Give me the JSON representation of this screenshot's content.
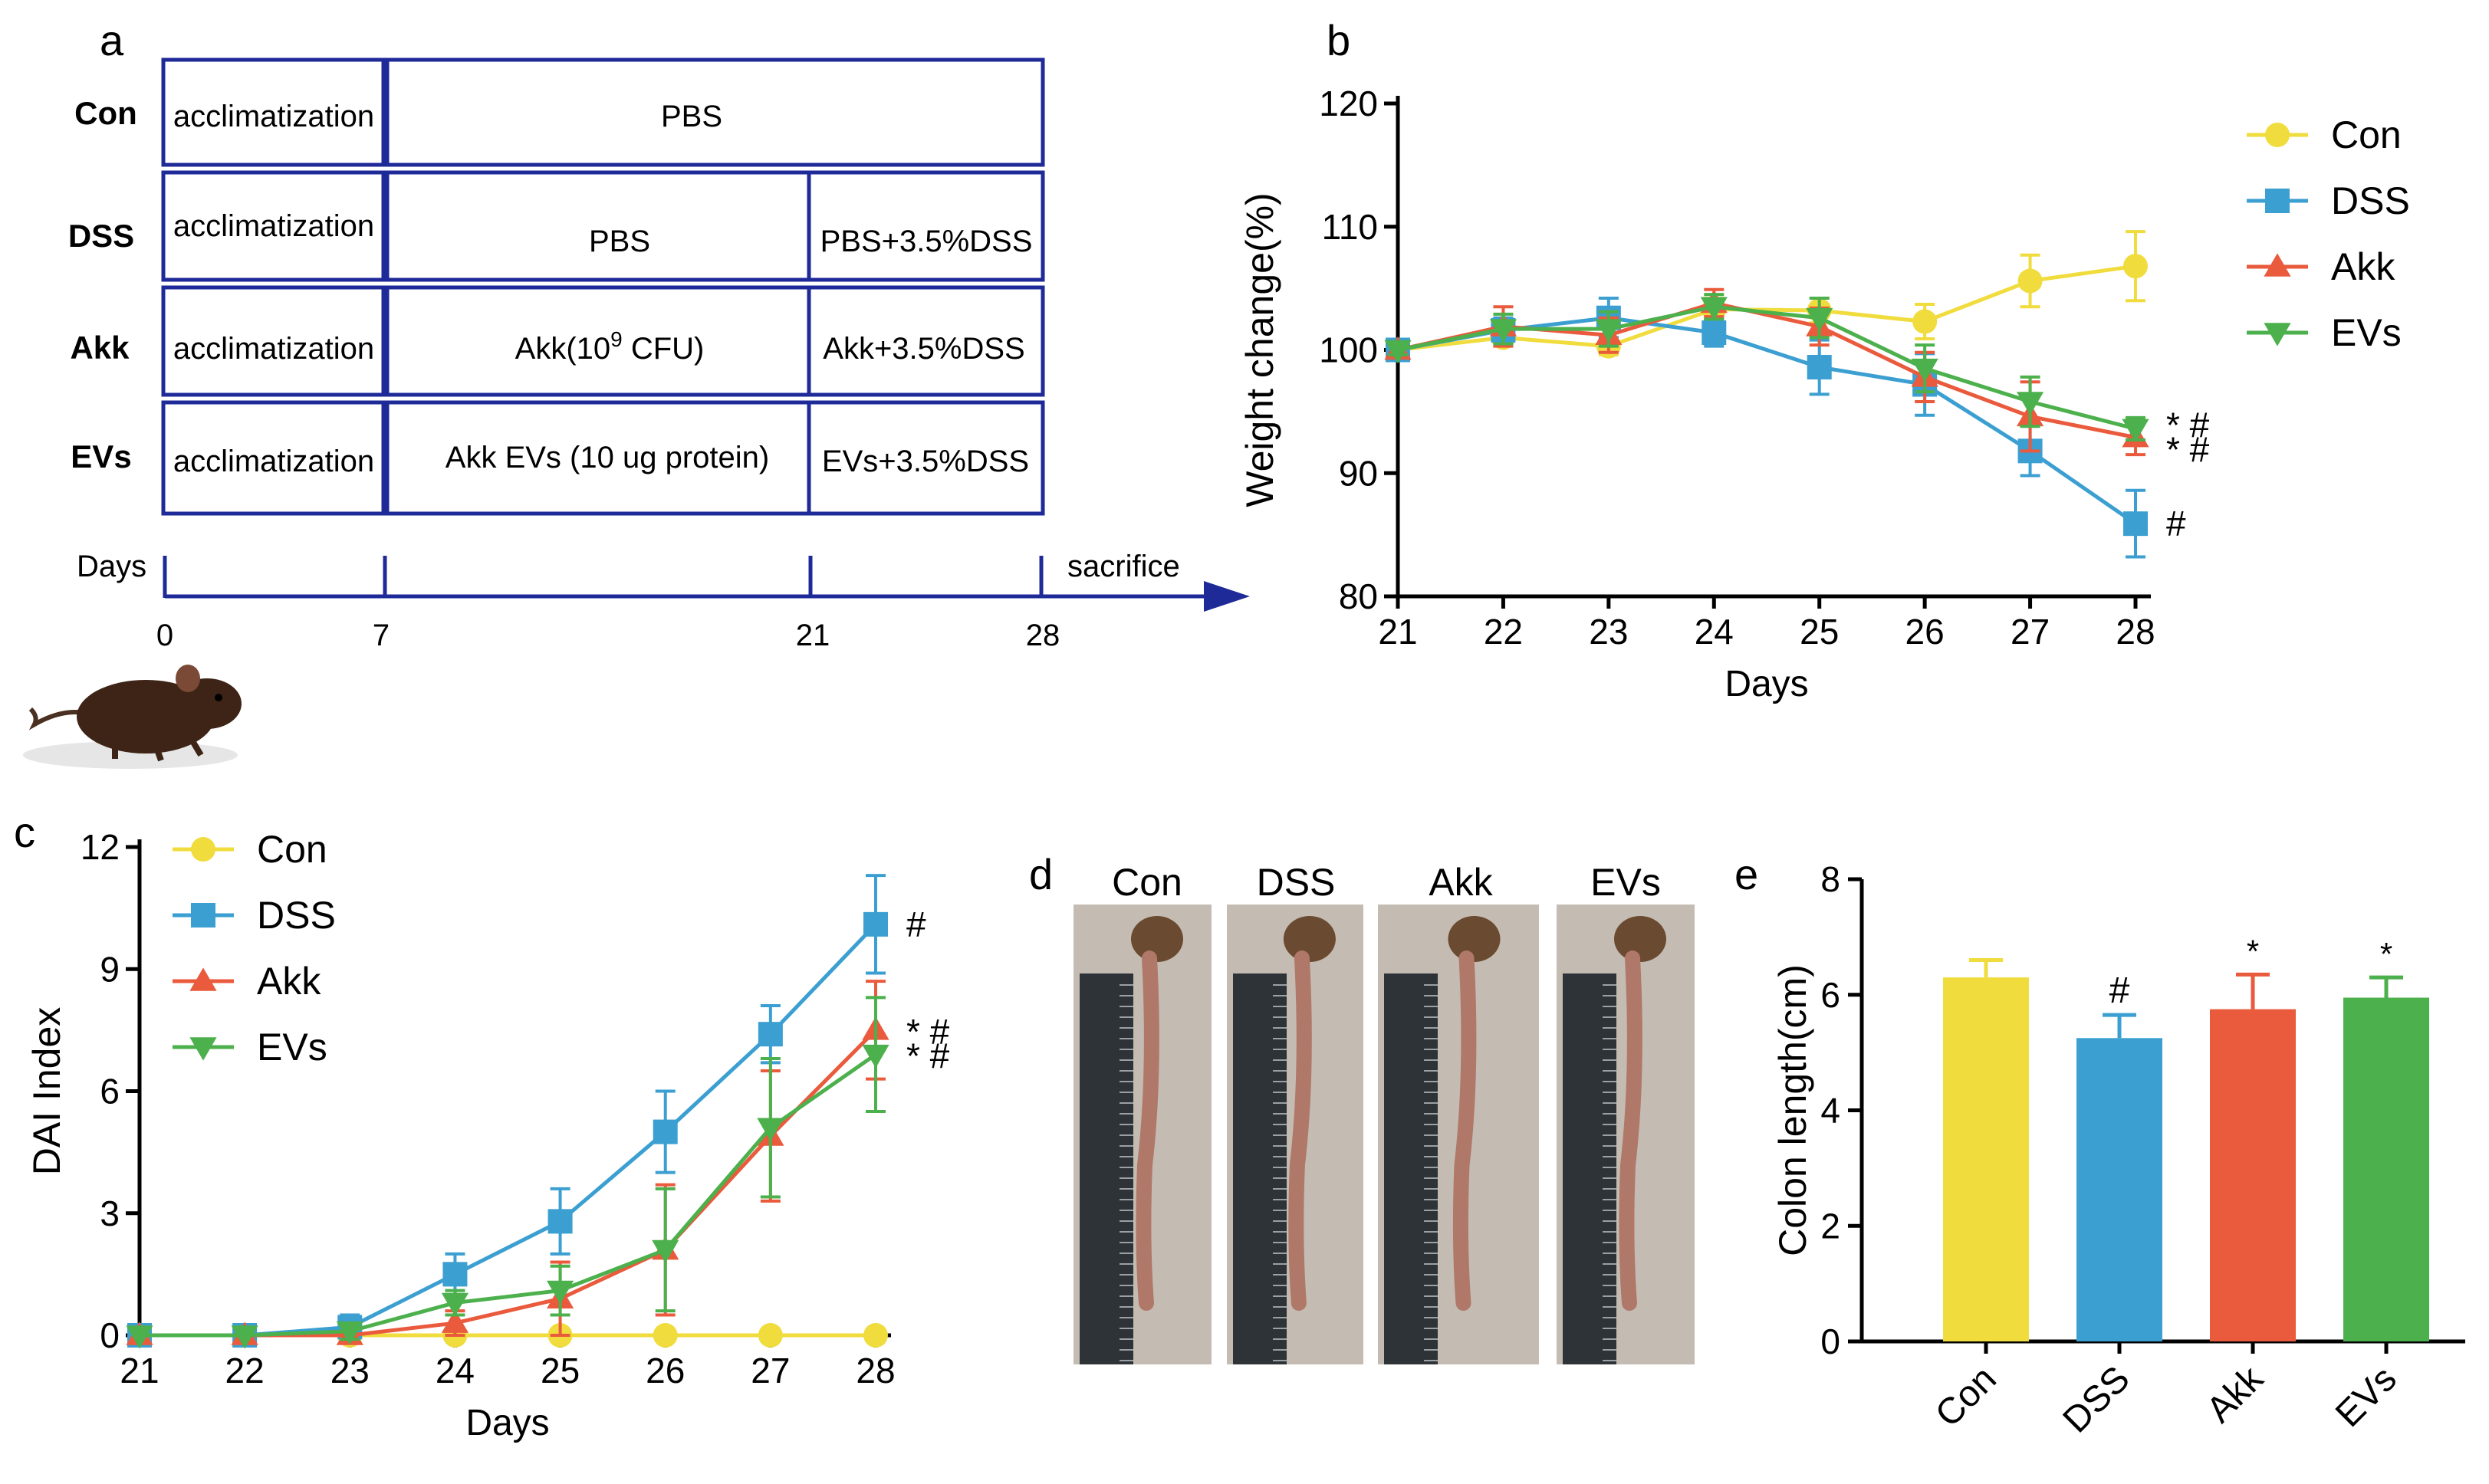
{
  "panels": {
    "a": "a",
    "b": "b",
    "c": "c",
    "d": "d",
    "e": "e"
  },
  "colors": {
    "con": "#f0dc3c",
    "dss": "#3b9fd1",
    "akk": "#ea5a3c",
    "evs": "#4cb04c",
    "schematic": "#1f2a99"
  },
  "schematic": {
    "rows": [
      {
        "group": "Con",
        "c1": "acclimatization",
        "c2": "PBS",
        "c3": ""
      },
      {
        "group": "DSS",
        "c1": "acclimatization",
        "c2": "PBS",
        "c3": "PBS+3.5%DSS"
      },
      {
        "group": "Akk",
        "c1": "acclimatization",
        "c2_prefix": "Akk(10",
        "c2_sup": "9",
        "c2_suffix": " CFU)",
        "c3": "Akk+3.5%DSS"
      },
      {
        "group": "EVs",
        "c1": "acclimatization",
        "c2": "Akk EVs (10 ug protein)",
        "c3": "EVs+3.5%DSS"
      }
    ],
    "timeline_label": "Days",
    "end_label": "sacrifice",
    "ticks": [
      "0",
      "7",
      "21",
      "28"
    ]
  },
  "chart_data": [
    {
      "id": "b",
      "type": "line",
      "title": "",
      "xlabel": "Days",
      "ylabel": "Weight change(%)",
      "x": [
        21,
        22,
        23,
        24,
        25,
        26,
        27,
        28
      ],
      "ylim": [
        80,
        120
      ],
      "yticks": [
        80,
        90,
        100,
        110,
        120
      ],
      "series": [
        {
          "name": "Con",
          "marker": "circle",
          "values": [
            100,
            101,
            100.3,
            103.3,
            103.2,
            102.3,
            105.6,
            106.8
          ],
          "err": [
            0.4,
            0.6,
            0.7,
            0.9,
            1.0,
            1.4,
            2.1,
            2.8
          ]
        },
        {
          "name": "DSS",
          "marker": "square",
          "values": [
            100,
            101.6,
            102.6,
            101.4,
            98.6,
            97.2,
            91.8,
            85.9
          ],
          "err": [
            0.4,
            1.0,
            1.6,
            1.1,
            2.2,
            2.5,
            2.0,
            2.7
          ]
        },
        {
          "name": "Akk",
          "marker": "triangle-up",
          "values": [
            100,
            101.9,
            101.2,
            103.8,
            101.9,
            97.8,
            94.6,
            92.9
          ],
          "err": [
            0.4,
            1.6,
            1.4,
            1.1,
            1.5,
            2.0,
            2.8,
            1.4
          ]
        },
        {
          "name": "EVs",
          "marker": "triangle-down",
          "values": [
            100,
            101.7,
            101.7,
            103.5,
            102.6,
            98.5,
            95.8,
            93.6
          ],
          "err": [
            0.4,
            1.2,
            1.4,
            1.0,
            1.6,
            1.9,
            2.0,
            0.9
          ]
        }
      ],
      "annotations": [
        {
          "series": "EVs",
          "text": "* #"
        },
        {
          "series": "Akk",
          "text": "* #"
        },
        {
          "series": "DSS",
          "text": "#"
        }
      ],
      "legend": "right"
    },
    {
      "id": "c",
      "type": "line",
      "title": "",
      "xlabel": "Days",
      "ylabel": "DAI Index",
      "x": [
        21,
        22,
        23,
        24,
        25,
        26,
        27,
        28
      ],
      "ylim": [
        0,
        12
      ],
      "yticks": [
        0,
        3,
        6,
        9,
        12
      ],
      "series": [
        {
          "name": "Con",
          "marker": "circle",
          "values": [
            0,
            0,
            0,
            0,
            0,
            0,
            0,
            0
          ],
          "err": [
            0,
            0,
            0,
            0,
            0,
            0,
            0,
            0
          ]
        },
        {
          "name": "DSS",
          "marker": "square",
          "values": [
            0,
            0,
            0.2,
            1.5,
            2.8,
            5.0,
            7.4,
            10.1
          ],
          "err": [
            0,
            0,
            0.3,
            0.5,
            0.8,
            1.0,
            0.7,
            1.2
          ]
        },
        {
          "name": "Akk",
          "marker": "triangle-up",
          "values": [
            0,
            0,
            0,
            0.3,
            0.9,
            2.1,
            4.9,
            7.5
          ],
          "err": [
            0,
            0,
            0,
            0.3,
            0.9,
            1.6,
            1.6,
            1.2
          ]
        },
        {
          "name": "EVs",
          "marker": "triangle-down",
          "values": [
            0,
            0,
            0.1,
            0.8,
            1.1,
            2.1,
            5.1,
            6.9
          ],
          "err": [
            0,
            0,
            0.2,
            0.3,
            0.6,
            1.5,
            1.7,
            1.4
          ]
        }
      ],
      "annotations": [
        {
          "series": "DSS",
          "text": "#"
        },
        {
          "series": "Akk",
          "text": "* #"
        },
        {
          "series": "EVs",
          "text": "* #"
        }
      ],
      "legend": "top-left"
    },
    {
      "id": "e",
      "type": "bar",
      "title": "",
      "xlabel": "",
      "ylabel": "Colon length(cm)",
      "categories": [
        "Con",
        "DSS",
        "Akk",
        "EVs"
      ],
      "values": [
        6.3,
        5.25,
        5.75,
        5.95
      ],
      "err": [
        0.3,
        0.4,
        0.6,
        0.35
      ],
      "ylim": [
        0,
        8
      ],
      "yticks": [
        0,
        2,
        4,
        6,
        8
      ],
      "annotations": [
        "",
        "#",
        "*",
        "*"
      ]
    }
  ],
  "photos": {
    "labels": [
      "Con",
      "DSS",
      "Akk",
      "EVs"
    ]
  }
}
